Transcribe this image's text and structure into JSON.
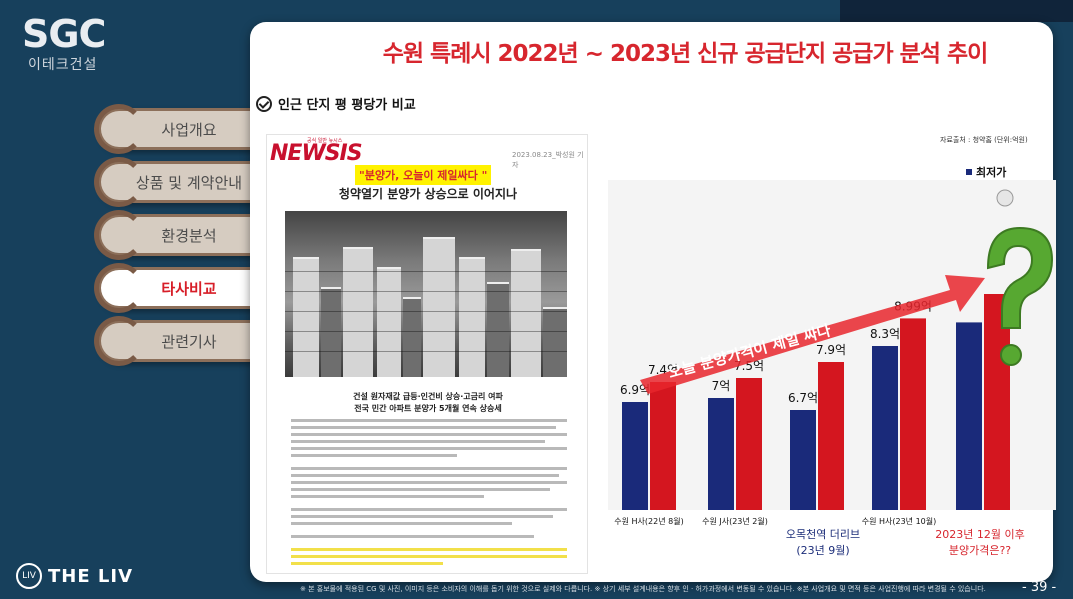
{
  "brand": {
    "logo": "SGC",
    "sub": "이테크건설"
  },
  "menu": {
    "items": [
      {
        "label": "사업개요"
      },
      {
        "label": "상품 및 계약안내"
      },
      {
        "label": "환경분석"
      },
      {
        "label": "타사비교"
      },
      {
        "label": "관련기사"
      }
    ]
  },
  "main": {
    "title": "수원 특례시 2022년 ~ 2023년 신규 공급단지 공급가 분석 추이",
    "section_label": "인근 단지 평 평당가 비교"
  },
  "article": {
    "logo": "NEWSIS",
    "logo_tag": "공식 일반 뉴시스",
    "date": "2023.08.23_박성원 기자",
    "highlight": "\"분양가, 오늘이 제일싸다 \"",
    "headline": "청약열기 분양가 상승으로 이어지나",
    "subhead_1": "건설 원자재값 급등·인건비 상승·고금리 여파",
    "subhead_2": "전국 민간 아파트 분양가 5개월 연속 상승세"
  },
  "chart": {
    "source": "자료출처 : 청약홈 (단위:억원)",
    "legend": "최저가",
    "arrow_label": "오늘 분양가격이 제일 싸다",
    "caption_left": [
      "오목천역 더리브",
      "(23년 9월)"
    ],
    "caption_right": [
      "2023년 12월 이후",
      "분양가격은??"
    ],
    "colors": {
      "low": "#1a2a7a",
      "high": "#d4161f"
    }
  },
  "chart_data": {
    "type": "bar",
    "categories": [
      "수원 H사(22년 8월)",
      "수원 J사(23년 2월)",
      "",
      "수원 H사(23년 10월)",
      ""
    ],
    "series": [
      {
        "name": "최저가",
        "values": [
          6.9,
          7.0,
          6.7,
          8.3,
          null
        ]
      },
      {
        "values": [
          7.4,
          7.5,
          7.9,
          8.99,
          null
        ]
      }
    ],
    "data_labels": {
      "low": [
        "6.9억",
        "7억",
        "6.7억",
        "8.3억",
        ""
      ],
      "high": [
        "7.4억",
        "7.5억",
        "7.9억",
        "8.99억",
        ""
      ]
    }
  },
  "footer": {
    "liv_logo": "THE LIV",
    "disclaimer": "※ 본 홍보물에 적용된 CG 및 사진, 이미지 등은 소비자의 이해를 돕기 위한 것으로 실제와 다릅니다. ※ 상기 세부 설계내용은 향후 인 · 허가과정에서 변동될 수 있습니다. ※본 사업개요 및 면적 등은 사업진행에 따라 변경될 수 있습니다.",
    "page": "- 39 -"
  }
}
